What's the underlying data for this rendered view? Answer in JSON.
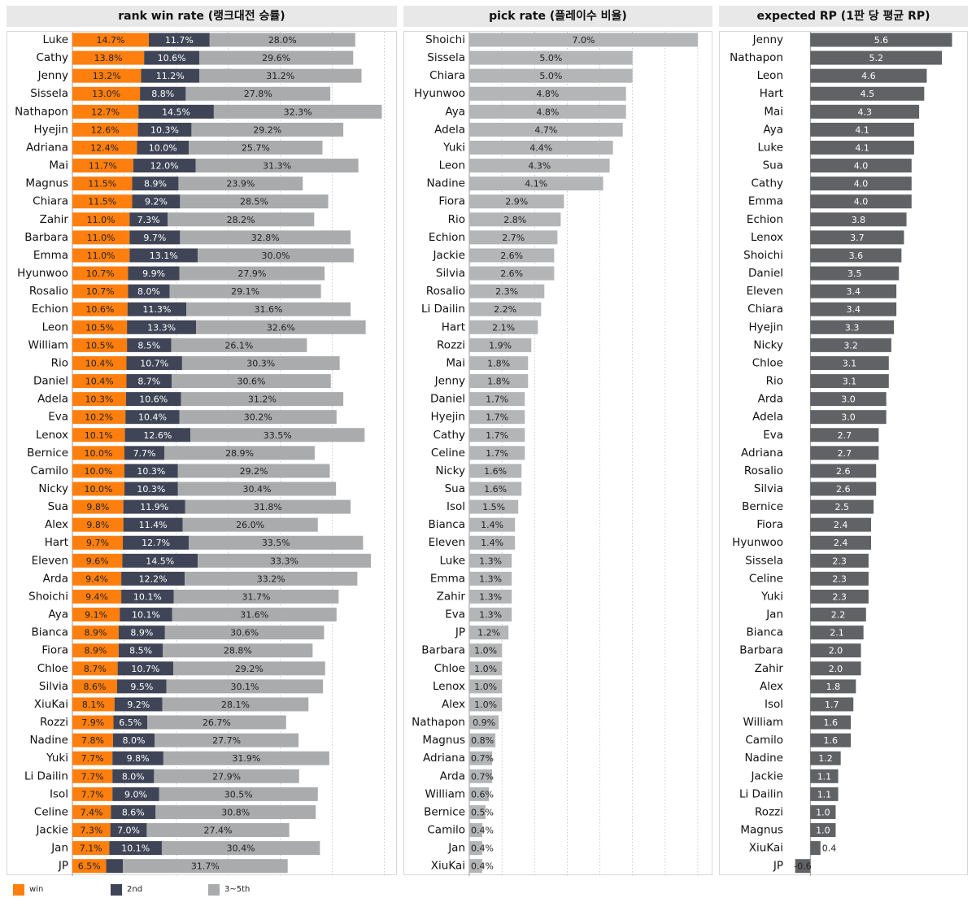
{
  "colors": {
    "win": "#ff7f0e",
    "second": "#3f4556",
    "third": "#a9abad",
    "pick": "#b3b5b7",
    "rp": "#606266"
  },
  "legend": [
    {
      "label": "win",
      "color": "#ff7f0e"
    },
    {
      "label": "2nd",
      "color": "#3f4556"
    },
    {
      "label": "3~5th",
      "color": "#a9abad"
    }
  ],
  "chart_data": [
    {
      "type": "bar",
      "stacked": true,
      "title": "rank win rate (랭크대전 승률)",
      "categories": [
        "Luke",
        "Cathy",
        "Jenny",
        "Sissela",
        "Nathapon",
        "Hyejin",
        "Adriana",
        "Mai",
        "Magnus",
        "Chiara",
        "Zahir",
        "Barbara",
        "Emma",
        "Hyunwoo",
        "Rosalio",
        "Echion",
        "Leon",
        "William",
        "Rio",
        "Daniel",
        "Adela",
        "Eva",
        "Lenox",
        "Bernice",
        "Camilo",
        "Nicky",
        "Sua",
        "Alex",
        "Hart",
        "Eleven",
        "Arda",
        "Shoichi",
        "Aya",
        "Bianca",
        "Fiora",
        "Chloe",
        "Silvia",
        "XiuKai",
        "Rozzi",
        "Nadine",
        "Yuki",
        "Li Dailin",
        "Isol",
        "Celine",
        "Jackie",
        "Jan",
        "JP"
      ],
      "series": [
        {
          "name": "win",
          "values": [
            14.7,
            13.8,
            13.2,
            13.0,
            12.7,
            12.6,
            12.4,
            11.7,
            11.5,
            11.5,
            11.0,
            11.0,
            11.0,
            10.7,
            10.7,
            10.6,
            10.5,
            10.5,
            10.4,
            10.4,
            10.3,
            10.2,
            10.1,
            10.0,
            10.0,
            10.0,
            9.8,
            9.8,
            9.7,
            9.6,
            9.4,
            9.4,
            9.1,
            8.9,
            8.9,
            8.7,
            8.6,
            8.1,
            7.9,
            7.8,
            7.7,
            7.7,
            7.7,
            7.4,
            7.3,
            7.1,
            6.5
          ]
        },
        {
          "name": "2nd",
          "values": [
            11.7,
            10.6,
            11.2,
            8.8,
            14.5,
            10.3,
            10.0,
            12.0,
            8.9,
            9.2,
            7.3,
            9.7,
            13.1,
            9.9,
            8.0,
            11.3,
            13.3,
            8.5,
            10.7,
            8.7,
            10.6,
            10.4,
            12.6,
            7.7,
            10.3,
            10.3,
            11.9,
            11.4,
            12.7,
            14.5,
            12.2,
            10.1,
            10.1,
            8.9,
            8.5,
            10.7,
            9.5,
            9.2,
            6.5,
            8.0,
            9.8,
            8.0,
            9.0,
            8.6,
            7.0,
            10.1,
            3.2
          ]
        },
        {
          "name": "3~5th",
          "values": [
            28.0,
            29.6,
            31.2,
            27.8,
            32.3,
            29.2,
            25.7,
            31.3,
            23.9,
            28.5,
            28.2,
            32.8,
            30.0,
            27.9,
            29.1,
            31.6,
            32.6,
            26.1,
            30.3,
            30.6,
            31.2,
            30.2,
            33.5,
            28.9,
            29.2,
            30.4,
            31.8,
            26.0,
            33.5,
            33.3,
            33.2,
            31.7,
            31.6,
            30.6,
            28.8,
            29.2,
            30.1,
            28.1,
            26.7,
            27.7,
            31.9,
            27.9,
            30.5,
            30.8,
            27.4,
            30.4,
            31.7
          ]
        }
      ],
      "value_labels": [
        [
          "14.7%",
          "13.8%",
          "13.2%",
          "13.0%",
          "12.7%",
          "12.6%",
          "12.4%",
          "11.7%",
          "11.5%",
          "11.5%",
          "11.0%",
          "11.0%",
          "11.0%",
          "10.7%",
          "10.7%",
          "10.6%",
          "10.5%",
          "10.5%",
          "10.4%",
          "10.4%",
          "10.3%",
          "10.2%",
          "10.1%",
          "10.0%",
          "10.0%",
          "10.0%",
          "9.8%",
          "9.8%",
          "9.7%",
          "9.6%",
          "9.4%",
          "9.4%",
          "9.1%",
          "8.9%",
          "8.9%",
          "8.7%",
          "8.6%",
          "8.1%",
          "7.9%",
          "7.8%",
          "7.7%",
          "7.7%",
          "7.7%",
          "7.4%",
          "7.3%",
          "7.1%",
          "6.5%"
        ],
        [
          "11.7%",
          "10.6%",
          "11.2%",
          "8.8%",
          "14.5%",
          "10.3%",
          "10.0%",
          "12.0%",
          "8.9%",
          "9.2%",
          "7.3%",
          "9.7%",
          "13.1%",
          "9.9%",
          "8.0%",
          "11.3%",
          "13.3%",
          "8.5%",
          "10.7%",
          "8.7%",
          "10.6%",
          "10.4%",
          "12.6%",
          "7.7%",
          "10.3%",
          "10.3%",
          "11.9%",
          "11.4%",
          "12.7%",
          "14.5%",
          "12.2%",
          "10.1%",
          "10.1%",
          "8.9%",
          "8.5%",
          "10.7%",
          "9.5%",
          "9.2%",
          "6.5%",
          "8.0%",
          "9.8%",
          "8.0%",
          "9.0%",
          "8.6%",
          "7.0%",
          "10.1%",
          ""
        ],
        [
          "28.0%",
          "29.6%",
          "31.2%",
          "27.8%",
          "32.3%",
          "29.2%",
          "25.7%",
          "31.3%",
          "23.9%",
          "28.5%",
          "28.2%",
          "32.8%",
          "30.0%",
          "27.9%",
          "29.1%",
          "31.6%",
          "32.6%",
          "26.1%",
          "30.3%",
          "30.6%",
          "31.2%",
          "30.2%",
          "33.5%",
          "28.9%",
          "29.2%",
          "30.4%",
          "31.8%",
          "26.0%",
          "33.5%",
          "33.3%",
          "33.2%",
          "31.7%",
          "31.6%",
          "30.6%",
          "28.8%",
          "29.2%",
          "30.1%",
          "28.1%",
          "26.7%",
          "27.7%",
          "31.9%",
          "27.9%",
          "30.5%",
          "30.8%",
          "27.4%",
          "30.4%",
          "31.7%"
        ]
      ],
      "xlim": [
        0,
        61
      ],
      "grid": true
    },
    {
      "type": "bar",
      "title": "pick rate (플레이수 비율)",
      "categories": [
        "Shoichi",
        "Sissela",
        "Chiara",
        "Hyunwoo",
        "Aya",
        "Adela",
        "Yuki",
        "Leon",
        "Nadine",
        "Fiora",
        "Rio",
        "Echion",
        "Jackie",
        "Silvia",
        "Rosalio",
        "Li Dailin",
        "Hart",
        "Rozzi",
        "Mai",
        "Jenny",
        "Daniel",
        "Hyejin",
        "Cathy",
        "Celine",
        "Nicky",
        "Sua",
        "Isol",
        "Bianca",
        "Eleven",
        "Luke",
        "Emma",
        "Zahir",
        "Eva",
        "JP",
        "Barbara",
        "Chloe",
        "Lenox",
        "Alex",
        "Nathapon",
        "Magnus",
        "Adriana",
        "Arda",
        "William",
        "Bernice",
        "Camilo",
        "Jan",
        "XiuKai"
      ],
      "values": [
        7.0,
        5.0,
        5.0,
        4.8,
        4.8,
        4.7,
        4.4,
        4.3,
        4.1,
        2.9,
        2.8,
        2.7,
        2.6,
        2.6,
        2.3,
        2.2,
        2.1,
        1.9,
        1.8,
        1.8,
        1.7,
        1.7,
        1.7,
        1.7,
        1.6,
        1.6,
        1.5,
        1.4,
        1.4,
        1.3,
        1.3,
        1.3,
        1.3,
        1.2,
        1.0,
        1.0,
        1.0,
        1.0,
        0.9,
        0.8,
        0.7,
        0.7,
        0.6,
        0.5,
        0.4,
        0.4,
        0.4
      ],
      "value_labels": [
        "7.0%",
        "5.0%",
        "5.0%",
        "4.8%",
        "4.8%",
        "4.7%",
        "4.4%",
        "4.3%",
        "4.1%",
        "2.9%",
        "2.8%",
        "2.7%",
        "2.6%",
        "2.6%",
        "2.3%",
        "2.2%",
        "2.1%",
        "1.9%",
        "1.8%",
        "1.8%",
        "1.7%",
        "1.7%",
        "1.7%",
        "1.7%",
        "1.6%",
        "1.6%",
        "1.5%",
        "1.4%",
        "1.4%",
        "1.3%",
        "1.3%",
        "1.3%",
        "1.3%",
        "1.2%",
        "1.0%",
        "1.0%",
        "1.0%",
        "1.0%",
        "0.9%",
        "0.8%",
        "0.7%",
        "0.7%",
        "0.6%",
        "0.5%",
        "0.4%",
        "0.4%",
        "0.4%"
      ],
      "xlim": [
        0,
        7.3
      ],
      "grid": true
    },
    {
      "type": "bar",
      "title": "expected RP (1판 당 평균 RP)",
      "categories": [
        "Jenny",
        "Nathapon",
        "Leon",
        "Hart",
        "Mai",
        "Aya",
        "Luke",
        "Sua",
        "Cathy",
        "Emma",
        "Echion",
        "Lenox",
        "Shoichi",
        "Daniel",
        "Eleven",
        "Chiara",
        "Hyejin",
        "Nicky",
        "Chloe",
        "Rio",
        "Arda",
        "Adela",
        "Eva",
        "Adriana",
        "Rosalio",
        "Silvia",
        "Bernice",
        "Fiora",
        "Hyunwoo",
        "Sissela",
        "Celine",
        "Yuki",
        "Jan",
        "Bianca",
        "Barbara",
        "Zahir",
        "Alex",
        "Isol",
        "William",
        "Camilo",
        "Nadine",
        "Jackie",
        "Li Dailin",
        "Rozzi",
        "Magnus",
        "XiuKai",
        "JP"
      ],
      "values": [
        5.6,
        5.2,
        4.6,
        4.5,
        4.3,
        4.1,
        4.1,
        4.0,
        4.0,
        4.0,
        3.8,
        3.7,
        3.6,
        3.5,
        3.4,
        3.4,
        3.3,
        3.2,
        3.1,
        3.1,
        3.0,
        3.0,
        2.7,
        2.7,
        2.6,
        2.6,
        2.5,
        2.4,
        2.4,
        2.3,
        2.3,
        2.3,
        2.2,
        2.1,
        2.0,
        2.0,
        1.8,
        1.7,
        1.6,
        1.6,
        1.2,
        1.1,
        1.1,
        1.0,
        1.0,
        0.4,
        -0.6
      ],
      "value_labels": [
        "5.6",
        "5.2",
        "4.6",
        "4.5",
        "4.3",
        "4.1",
        "4.1",
        "4.0",
        "4.0",
        "4.0",
        "3.8",
        "3.7",
        "3.6",
        "3.5",
        "3.4",
        "3.4",
        "3.3",
        "3.2",
        "3.1",
        "3.1",
        "3.0",
        "3.0",
        "2.7",
        "2.7",
        "2.6",
        "2.6",
        "2.5",
        "2.4",
        "2.4",
        "2.3",
        "2.3",
        "2.3",
        "2.2",
        "2.1",
        "2.0",
        "2.0",
        "1.8",
        "1.7",
        "1.6",
        "1.6",
        "1.2",
        "1.1",
        "1.1",
        "1.0",
        "1.0",
        "0.4",
        "-0.6"
      ],
      "xlim": [
        -0.75,
        6.0
      ],
      "grid": false
    }
  ]
}
